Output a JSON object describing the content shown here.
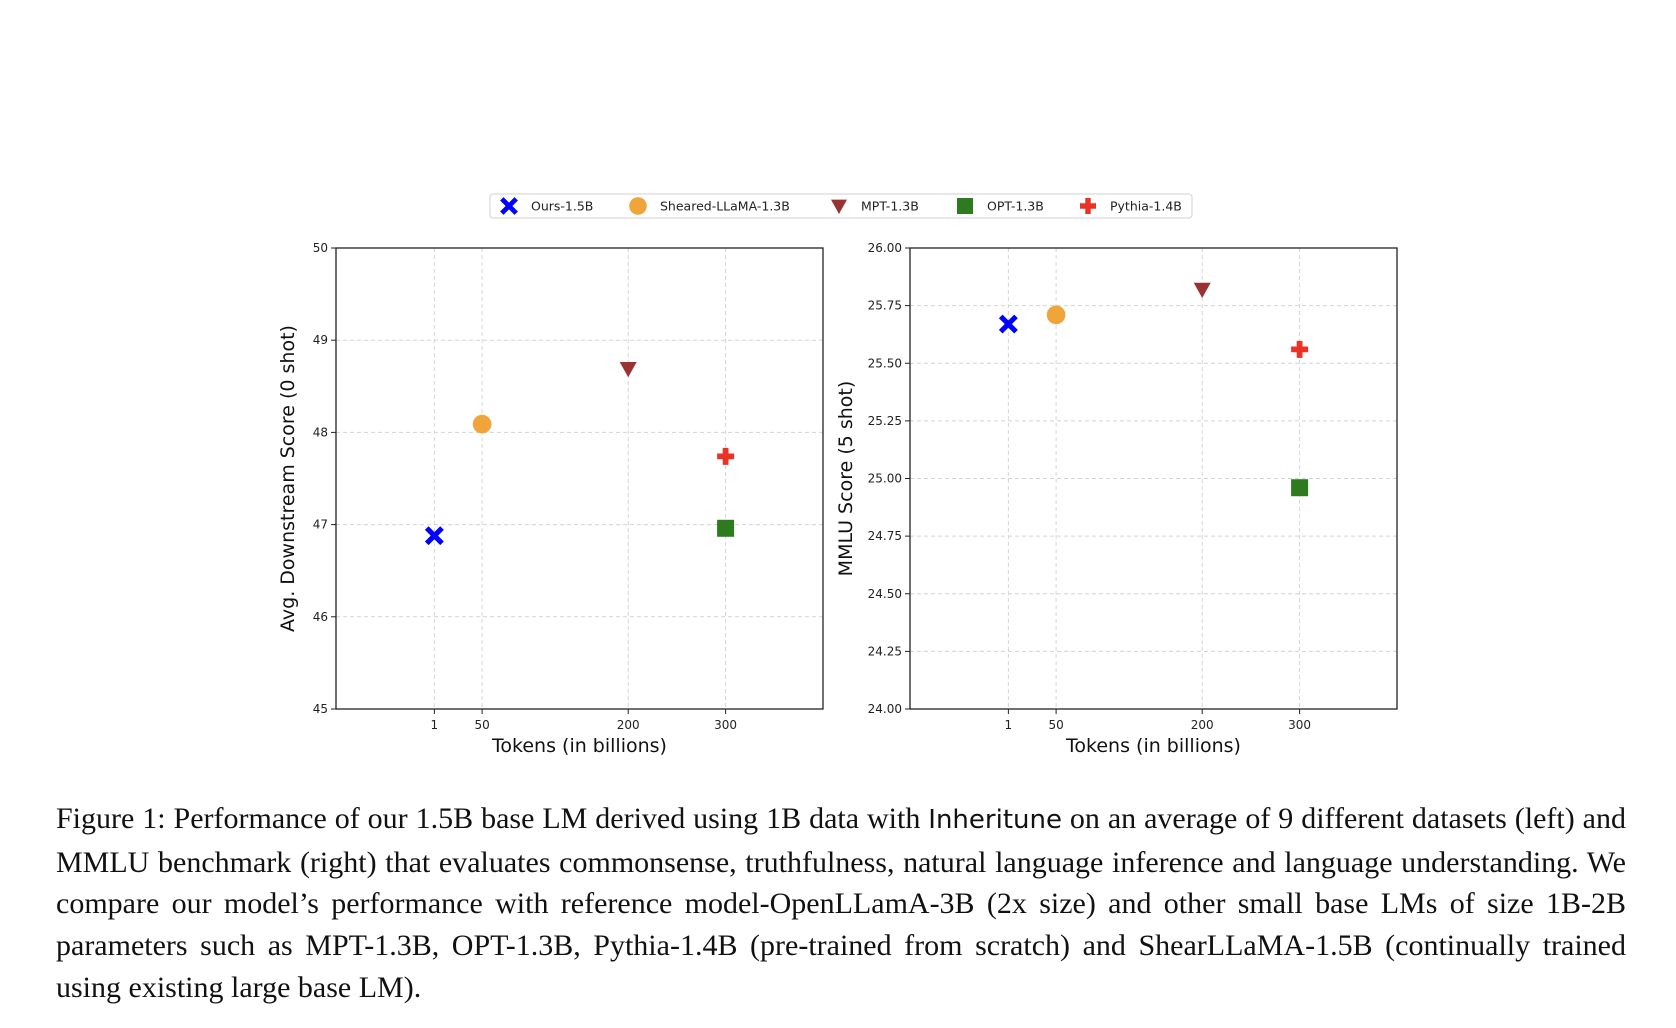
{
  "legend": {
    "placement": "top-center",
    "entries": [
      {
        "name": "Ours-1.5B",
        "marker": "x-filled",
        "color": "#0000ff"
      },
      {
        "name": "Sheared-LLaMA-1.3B",
        "marker": "circle",
        "color": "#f0a53a"
      },
      {
        "name": "MPT-1.3B",
        "marker": "triangle-down",
        "color": "#9b3232"
      },
      {
        "name": "OPT-1.3B",
        "marker": "square",
        "color": "#2e7a1e"
      },
      {
        "name": "Pythia-1.4B",
        "marker": "plus-filled",
        "color": "#ea3326"
      }
    ]
  },
  "chart_data": [
    {
      "type": "scatter",
      "xlabel": "Tokens (in billions)",
      "ylabel": "Avg. Downstream Score (0 shot)",
      "xlim": [
        -100,
        400
      ],
      "ylim": [
        45,
        50
      ],
      "xticks": [
        "1",
        "50",
        "200",
        "300"
      ],
      "xtick_values": [
        1,
        50,
        200,
        300
      ],
      "yticks": [
        "45",
        "46",
        "47",
        "48",
        "49",
        "50"
      ],
      "ytick_values": [
        45,
        46,
        47,
        48,
        49,
        50
      ],
      "grid": true,
      "series": [
        {
          "name": "Ours-1.5B",
          "x": [
            1
          ],
          "y": [
            46.88
          ]
        },
        {
          "name": "Sheared-LLaMA-1.3B",
          "x": [
            50
          ],
          "y": [
            48.09
          ]
        },
        {
          "name": "MPT-1.3B",
          "x": [
            200
          ],
          "y": [
            48.69
          ]
        },
        {
          "name": "OPT-1.3B",
          "x": [
            300
          ],
          "y": [
            46.96
          ]
        },
        {
          "name": "Pythia-1.4B",
          "x": [
            300
          ],
          "y": [
            47.74
          ]
        }
      ]
    },
    {
      "type": "scatter",
      "xlabel": "Tokens (in billions)",
      "ylabel": "MMLU Score (5 shot)",
      "xlim": [
        -100,
        400
      ],
      "ylim": [
        24.0,
        26.0
      ],
      "xticks": [
        "1",
        "50",
        "200",
        "300"
      ],
      "xtick_values": [
        1,
        50,
        200,
        300
      ],
      "yticks": [
        "24.00",
        "24.25",
        "24.50",
        "24.75",
        "25.00",
        "25.25",
        "25.50",
        "25.75",
        "26.00"
      ],
      "ytick_values": [
        24.0,
        24.25,
        24.5,
        24.75,
        25.0,
        25.25,
        25.5,
        25.75,
        26.0
      ],
      "grid": true,
      "series": [
        {
          "name": "Ours-1.5B",
          "x": [
            1
          ],
          "y": [
            25.67
          ]
        },
        {
          "name": "Sheared-LLaMA-1.3B",
          "x": [
            50
          ],
          "y": [
            25.71
          ]
        },
        {
          "name": "MPT-1.3B",
          "x": [
            200
          ],
          "y": [
            25.82
          ]
        },
        {
          "name": "OPT-1.3B",
          "x": [
            300
          ],
          "y": [
            24.96
          ]
        },
        {
          "name": "Pythia-1.4B",
          "x": [
            300
          ],
          "y": [
            25.56
          ]
        }
      ]
    }
  ],
  "caption": {
    "prefix": "Figure 1: Performance of our 1.5B base LM derived using 1B data with ",
    "method": "Inheritune",
    "suffix": " on an average of 9 different datasets (left) and MMLU benchmark (right) that evaluates commonsense, truthfulness, natural language inference and language understanding. We compare our model’s performance with reference model-OpenLLamA-3B (2x size) and other small base LMs of size 1B-2B parameters such as MPT-1.3B, OPT-1.3B, Pythia-1.4B (pre-trained from scratch) and ShearLLaMA-1.5B (continually trained using existing large base LM)."
  }
}
